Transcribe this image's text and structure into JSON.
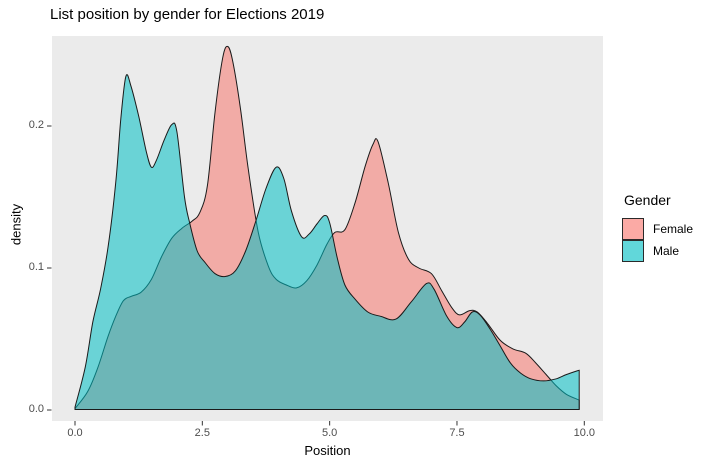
{
  "title": "List position by gender for Elections 2019",
  "chart_data": {
    "type": "area",
    "subtype": "overlapping-density",
    "title": "List position by gender for Elections 2019",
    "xlabel": "Position",
    "ylabel": "density",
    "xlim": [
      0,
      10.4
    ],
    "ylim": [
      0,
      0.263
    ],
    "grid": false,
    "panel_background": "#EBEBEB",
    "fill_alpha": 0.55,
    "stroke_color": "#1a1a1a",
    "xticks": {
      "values": [
        0,
        2.5,
        5,
        7.5,
        10
      ],
      "labels": [
        "0.0",
        "2.5",
        "5.0",
        "7.5",
        "10.0"
      ]
    },
    "yticks": {
      "values": [
        0,
        0.1,
        0.2
      ],
      "labels": [
        "0.0",
        "0.1",
        "0.2"
      ]
    },
    "legend": {
      "title": "Gender",
      "position": "right",
      "entries": [
        {
          "label": "Female",
          "color": "#F8766D"
        },
        {
          "label": "Male",
          "color": "#00BFC4"
        }
      ]
    },
    "series": [
      {
        "name": "Female",
        "color": "#F8766D",
        "points": [
          [
            0,
            0.001
          ],
          [
            0.25,
            0.013
          ],
          [
            0.45,
            0.03
          ],
          [
            0.65,
            0.052
          ],
          [
            0.8,
            0.066
          ],
          [
            0.95,
            0.077
          ],
          [
            1.1,
            0.08
          ],
          [
            1.3,
            0.083
          ],
          [
            1.5,
            0.092
          ],
          [
            1.7,
            0.108
          ],
          [
            1.9,
            0.121
          ],
          [
            2.1,
            0.128
          ],
          [
            2.3,
            0.133
          ],
          [
            2.45,
            0.139
          ],
          [
            2.6,
            0.158
          ],
          [
            2.75,
            0.21
          ],
          [
            2.9,
            0.248
          ],
          [
            3.0,
            0.256
          ],
          [
            3.1,
            0.245
          ],
          [
            3.25,
            0.212
          ],
          [
            3.4,
            0.17
          ],
          [
            3.6,
            0.125
          ],
          [
            3.8,
            0.101
          ],
          [
            3.95,
            0.092
          ],
          [
            4.15,
            0.088
          ],
          [
            4.35,
            0.086
          ],
          [
            4.55,
            0.091
          ],
          [
            4.75,
            0.102
          ],
          [
            4.95,
            0.117
          ],
          [
            5.1,
            0.125
          ],
          [
            5.3,
            0.127
          ],
          [
            5.5,
            0.146
          ],
          [
            5.7,
            0.172
          ],
          [
            5.85,
            0.187
          ],
          [
            5.95,
            0.189
          ],
          [
            6.15,
            0.16
          ],
          [
            6.35,
            0.125
          ],
          [
            6.55,
            0.106
          ],
          [
            6.75,
            0.1
          ],
          [
            7.0,
            0.096
          ],
          [
            7.2,
            0.084
          ],
          [
            7.4,
            0.072
          ],
          [
            7.55,
            0.067
          ],
          [
            7.75,
            0.07
          ],
          [
            7.9,
            0.069
          ],
          [
            8.1,
            0.061
          ],
          [
            8.35,
            0.049
          ],
          [
            8.6,
            0.043
          ],
          [
            8.85,
            0.04
          ],
          [
            9.05,
            0.033
          ],
          [
            9.25,
            0.025
          ],
          [
            9.45,
            0.017
          ],
          [
            9.65,
            0.011
          ],
          [
            9.9,
            0.007
          ]
        ]
      },
      {
        "name": "Male",
        "color": "#00BFC4",
        "points": [
          [
            0,
            0.002
          ],
          [
            0.2,
            0.03
          ],
          [
            0.35,
            0.062
          ],
          [
            0.5,
            0.085
          ],
          [
            0.65,
            0.115
          ],
          [
            0.8,
            0.16
          ],
          [
            0.9,
            0.205
          ],
          [
            1.0,
            0.235
          ],
          [
            1.1,
            0.228
          ],
          [
            1.25,
            0.207
          ],
          [
            1.4,
            0.182
          ],
          [
            1.5,
            0.171
          ],
          [
            1.6,
            0.176
          ],
          [
            1.75,
            0.19
          ],
          [
            1.9,
            0.201
          ],
          [
            2.0,
            0.196
          ],
          [
            2.15,
            0.15
          ],
          [
            2.25,
            0.132
          ],
          [
            2.4,
            0.112
          ],
          [
            2.55,
            0.104
          ],
          [
            2.75,
            0.096
          ],
          [
            2.95,
            0.094
          ],
          [
            3.15,
            0.098
          ],
          [
            3.35,
            0.112
          ],
          [
            3.55,
            0.133
          ],
          [
            3.75,
            0.156
          ],
          [
            3.95,
            0.171
          ],
          [
            4.1,
            0.163
          ],
          [
            4.25,
            0.14
          ],
          [
            4.45,
            0.122
          ],
          [
            4.6,
            0.124
          ],
          [
            4.75,
            0.131
          ],
          [
            4.9,
            0.137
          ],
          [
            5.0,
            0.132
          ],
          [
            5.15,
            0.107
          ],
          [
            5.3,
            0.088
          ],
          [
            5.5,
            0.078
          ],
          [
            5.75,
            0.069
          ],
          [
            6.0,
            0.066
          ],
          [
            6.3,
            0.064
          ],
          [
            6.6,
            0.076
          ],
          [
            6.9,
            0.089
          ],
          [
            7.05,
            0.085
          ],
          [
            7.3,
            0.066
          ],
          [
            7.5,
            0.058
          ],
          [
            7.65,
            0.062
          ],
          [
            7.8,
            0.069
          ],
          [
            7.95,
            0.067
          ],
          [
            8.15,
            0.057
          ],
          [
            8.35,
            0.045
          ],
          [
            8.55,
            0.033
          ],
          [
            8.75,
            0.026
          ],
          [
            8.95,
            0.022
          ],
          [
            9.2,
            0.0205
          ],
          [
            9.45,
            0.022
          ],
          [
            9.65,
            0.025
          ],
          [
            9.9,
            0.028
          ]
        ]
      }
    ]
  }
}
